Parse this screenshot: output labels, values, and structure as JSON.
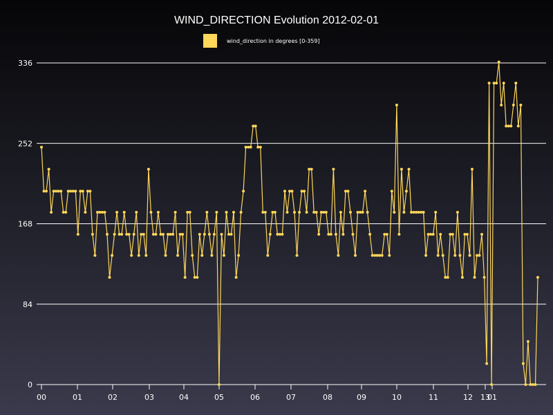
{
  "chart_data": {
    "type": "line",
    "title": "WIND_DIRECTION Evolution 2012-02-01",
    "xlabel": "",
    "ylabel": "",
    "ylim": [
      0,
      360
    ],
    "yticks": [
      0,
      84,
      168,
      252,
      336
    ],
    "xticks": [
      "00",
      "01",
      "02",
      "03",
      "04",
      "05",
      "06",
      "07",
      "08",
      "09",
      "10",
      "11",
      "12",
      "13",
      "01"
    ],
    "legend_position": "top-center",
    "grid": true,
    "colors": {
      "series": "#ffd75a",
      "grid": "#ffffff",
      "text": "#ffffff"
    },
    "series": [
      {
        "name": "wind_direction in degrees [0-359]",
        "values": [
          248,
          202,
          202,
          225,
          180,
          202,
          202,
          202,
          202,
          180,
          180,
          202,
          202,
          202,
          202,
          157,
          202,
          202,
          180,
          202,
          202,
          157,
          135,
          180,
          180,
          180,
          180,
          157,
          112,
          135,
          157,
          180,
          157,
          157,
          180,
          157,
          157,
          135,
          157,
          180,
          135,
          157,
          157,
          135,
          225,
          180,
          157,
          157,
          180,
          157,
          157,
          135,
          157,
          157,
          157,
          180,
          135,
          157,
          157,
          112,
          180,
          180,
          135,
          112,
          112,
          157,
          135,
          157,
          180,
          157,
          135,
          157,
          180,
          0,
          157,
          135,
          180,
          157,
          157,
          180,
          112,
          135,
          180,
          202,
          248,
          248,
          248,
          270,
          270,
          248,
          248,
          180,
          180,
          135,
          157,
          180,
          180,
          157,
          157,
          157,
          202,
          180,
          202,
          202,
          180,
          135,
          180,
          202,
          202,
          180,
          225,
          225,
          180,
          180,
          157,
          180,
          180,
          180,
          157,
          157,
          225,
          157,
          135,
          180,
          157,
          202,
          202,
          180,
          157,
          135,
          180,
          180,
          180,
          202,
          180,
          157,
          135,
          135,
          135,
          135,
          135,
          157,
          157,
          135,
          202,
          180,
          292,
          157,
          225,
          180,
          202,
          225,
          180,
          180,
          180,
          180,
          180,
          180,
          135,
          157,
          157,
          157,
          180,
          135,
          157,
          135,
          112,
          112,
          157,
          157,
          135,
          180,
          135,
          112,
          157,
          157,
          135,
          225,
          112,
          135,
          135,
          157,
          112,
          22,
          315,
          0,
          315,
          315,
          337,
          292,
          315,
          270,
          270,
          270,
          292,
          315,
          270,
          292,
          22,
          0,
          45,
          0,
          0,
          0,
          112
        ]
      }
    ]
  }
}
